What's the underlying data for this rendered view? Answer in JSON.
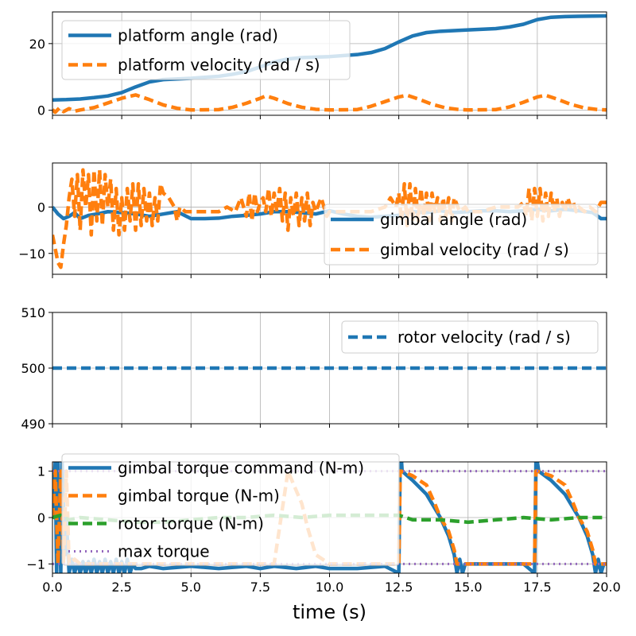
{
  "colors": {
    "blue": "#1f77b4",
    "orange": "#ff7f0e",
    "green": "#2ca02c",
    "purple": "#9467bd",
    "grid": "#b0b0b0"
  },
  "chart_data": [
    {
      "type": "line",
      "xlim": [
        0,
        20
      ],
      "ylim": [
        -1.5,
        29.5
      ],
      "xticks": [
        0,
        2.5,
        5,
        7.5,
        10,
        12.5,
        15,
        17.5,
        20
      ],
      "yticks": [
        0,
        20
      ],
      "ytick_labels": [
        "0",
        "20"
      ],
      "grid": true,
      "legend_position": "upper-left",
      "series": [
        {
          "name": "platform angle (rad)",
          "style": "solid",
          "color": "blue",
          "x": [
            0,
            0.5,
            1,
            1.5,
            2,
            2.5,
            3,
            3.5,
            4,
            5,
            6,
            6.5,
            7,
            7.5,
            8,
            8.5,
            9,
            10,
            11,
            11.5,
            12,
            12.5,
            13,
            13.5,
            14,
            15,
            16,
            16.5,
            17,
            17.5,
            18,
            18.5,
            19,
            20
          ],
          "y": [
            3.1,
            3.2,
            3.4,
            3.8,
            4.3,
            5.3,
            7.0,
            8.5,
            9.2,
            9.6,
            10.2,
            10.8,
            11.6,
            13.0,
            14.5,
            15.4,
            15.8,
            16.1,
            16.7,
            17.3,
            18.5,
            20.5,
            22.3,
            23.3,
            23.7,
            24.1,
            24.5,
            25.0,
            25.8,
            27.2,
            27.9,
            28.1,
            28.2,
            28.3
          ]
        },
        {
          "name": "platform velocity (rad / s)",
          "style": "dashed",
          "color": "orange",
          "x": [
            0,
            0.1,
            0.25,
            0.4,
            0.6,
            0.8,
            1.0,
            1.5,
            2.0,
            2.5,
            3.0,
            3.5,
            4.0,
            4.5,
            5.0,
            6.0,
            6.5,
            7.0,
            7.5,
            7.7,
            8.0,
            8.5,
            9.0,
            9.5,
            10.0,
            11.0,
            11.5,
            12.0,
            12.5,
            12.8,
            13.2,
            13.7,
            14.2,
            14.7,
            15.0,
            16.0,
            16.5,
            17.0,
            17.5,
            17.8,
            18.2,
            18.7,
            19.2,
            19.7,
            20.0
          ],
          "y": [
            0.2,
            -0.6,
            0.7,
            -0.4,
            0.5,
            -0.3,
            0.1,
            0.8,
            2.2,
            3.6,
            4.6,
            3.2,
            1.6,
            0.6,
            0.1,
            0.2,
            0.9,
            2.1,
            3.6,
            4.3,
            3.6,
            2.0,
            0.9,
            0.3,
            0.1,
            0.2,
            1.2,
            2.6,
            4.0,
            4.5,
            3.4,
            1.8,
            0.7,
            0.2,
            0.1,
            0.2,
            1.0,
            2.4,
            4.0,
            4.5,
            3.4,
            1.8,
            0.7,
            0.2,
            0.1
          ]
        }
      ]
    },
    {
      "type": "line",
      "xlim": [
        0,
        20
      ],
      "ylim": [
        -14.5,
        9.5
      ],
      "xticks": [
        0,
        2.5,
        5,
        7.5,
        10,
        12.5,
        15,
        17.5,
        20
      ],
      "yticks": [
        0,
        -10
      ],
      "ytick_labels": [
        "0",
        "−10"
      ],
      "grid": true,
      "legend_position": "lower-right",
      "series": [
        {
          "name": "gimbal angle (rad)",
          "style": "solid",
          "color": "blue",
          "x": [
            0,
            0.2,
            0.4,
            0.6,
            0.8,
            1.0,
            1.3,
            1.6,
            2.0,
            2.5,
            3.0,
            3.5,
            4.0,
            4.5,
            5.0,
            5.5,
            6.0,
            6.5,
            7.0,
            7.5,
            8.0,
            8.5,
            9.0,
            9.5,
            10.0,
            10.5,
            11.0,
            11.5,
            12.0,
            12.5,
            13.0,
            13.5,
            14.0,
            14.5,
            15.0,
            15.5,
            16.0,
            16.5,
            17.0,
            17.5,
            18.0,
            18.5,
            19.0,
            19.5,
            19.8,
            20.0
          ],
          "y": [
            0,
            -1.5,
            -2.5,
            -2.0,
            -1.2,
            -2.5,
            -1.8,
            -1.5,
            -1.0,
            -1.2,
            -1.5,
            -2.0,
            -1.5,
            -1.0,
            -2.5,
            -2.5,
            -2.4,
            -2.0,
            -1.8,
            -1.5,
            -1.0,
            -1.0,
            -1.2,
            -1.5,
            -0.8,
            -1.5,
            -2.0,
            -2.2,
            -2.0,
            -1.8,
            -1.0,
            -1.2,
            -0.8,
            -1.2,
            -1.0,
            -0.8,
            -0.8,
            -1.0,
            -0.8,
            -0.5,
            -0.8,
            -0.5,
            -0.8,
            -1.2,
            -2.5,
            -2.5
          ]
        },
        {
          "name": "gimbal velocity (rad / s)",
          "style": "dashed",
          "color": "orange",
          "x": [
            0,
            0.1,
            0.2,
            0.3,
            0.4,
            0.5,
            0.6,
            0.7,
            0.8,
            0.9,
            1.0,
            1.1,
            1.2,
            1.3,
            1.4,
            1.5,
            1.6,
            1.7,
            1.8,
            1.9,
            2.0,
            2.1,
            2.2,
            2.3,
            2.4,
            2.5,
            2.6,
            2.7,
            2.8,
            2.9,
            3.0,
            3.1,
            3.2,
            3.3,
            3.4,
            3.5,
            3.6,
            3.7,
            3.8,
            3.9,
            4.0,
            4.2,
            4.4,
            4.5,
            4.6,
            4.8,
            5.0,
            5.5,
            6.0,
            6.3,
            6.6,
            6.8,
            7.0,
            7.1,
            7.2,
            7.3,
            7.4,
            7.5,
            7.6,
            7.7,
            7.8,
            7.9,
            8.0,
            8.1,
            8.2,
            8.3,
            8.4,
            8.5,
            8.6,
            8.7,
            8.8,
            8.9,
            9.0,
            9.1,
            9.2,
            9.3,
            9.4,
            9.5,
            9.7,
            9.9,
            10.0,
            10.5,
            11.0,
            11.5,
            12.0,
            12.2,
            12.4,
            12.5,
            12.6,
            12.7,
            12.8,
            12.9,
            13.0,
            13.1,
            13.2,
            13.3,
            13.4,
            13.5,
            13.6,
            13.7,
            13.8,
            13.9,
            14.0,
            14.1,
            14.2,
            14.3,
            14.4,
            14.5,
            14.7,
            14.9,
            15.0,
            15.5,
            16.0,
            16.5,
            16.8,
            17.0,
            17.1,
            17.2,
            17.3,
            17.4,
            17.5,
            17.6,
            17.7,
            17.8,
            17.9,
            18.0,
            18.1,
            18.2,
            18.3,
            18.4,
            18.5,
            18.6,
            18.7,
            18.8,
            18.9,
            19.0,
            19.2,
            19.4,
            19.6,
            19.8,
            20.0
          ],
          "y": [
            -6,
            -9,
            -12,
            -13,
            -8,
            -4,
            2,
            6,
            -2,
            7,
            -5,
            8,
            0,
            7,
            -6,
            8,
            -3,
            8,
            -4,
            7,
            0,
            6,
            -5,
            4,
            -6,
            2,
            -5,
            4,
            -3,
            5,
            -5,
            5,
            -4,
            4,
            -3,
            3,
            -4,
            2,
            -3,
            5,
            3,
            2,
            0,
            -3,
            0,
            -1,
            -1,
            -1,
            -1,
            0,
            -1,
            2,
            -2,
            3,
            -3,
            3,
            -1,
            1,
            2,
            -1,
            4,
            -2,
            3,
            -1,
            4,
            -3,
            3,
            -5,
            2,
            -2,
            3,
            -4,
            2,
            -3,
            3,
            -4,
            1,
            -1,
            2,
            -2,
            -1,
            -1,
            -1,
            -1,
            0,
            2,
            0,
            3,
            -3,
            5,
            -4,
            5,
            -3,
            4,
            -3,
            4,
            -2,
            3,
            -3,
            3,
            -1,
            2,
            -3,
            2,
            -2,
            2,
            -3,
            2,
            -1,
            0,
            -1,
            -1,
            0,
            0,
            0,
            1,
            -2,
            4,
            -3,
            4,
            -2,
            4,
            -3,
            3,
            -2,
            3,
            -1,
            2,
            -2,
            1,
            -1,
            2,
            0,
            1,
            -1,
            0,
            -1,
            0,
            -1,
            1,
            1
          ]
        }
      ]
    },
    {
      "type": "line",
      "xlim": [
        0,
        20
      ],
      "ylim": [
        490,
        510
      ],
      "xticks": [
        0,
        2.5,
        5,
        7.5,
        10,
        12.5,
        15,
        17.5,
        20
      ],
      "yticks": [
        510,
        500,
        490
      ],
      "ytick_labels": [
        "510",
        "500",
        "490"
      ],
      "grid": true,
      "legend_position": "upper-right",
      "series": [
        {
          "name": "rotor velocity (rad / s)",
          "style": "dashed",
          "color": "blue",
          "x": [
            0,
            20
          ],
          "y": [
            500,
            500
          ]
        }
      ]
    },
    {
      "type": "line",
      "xlim": [
        0,
        20
      ],
      "ylim": [
        -1.2,
        1.2
      ],
      "xticks": [
        0,
        2.5,
        5,
        7.5,
        10,
        12.5,
        15,
        17.5,
        20
      ],
      "xtick_labels": [
        "0.0",
        "2.5",
        "5.0",
        "7.5",
        "10.0",
        "12.5",
        "15.0",
        "17.5",
        "20.0"
      ],
      "yticks": [
        1,
        0,
        -1
      ],
      "ytick_labels": [
        "1",
        "0",
        "−1"
      ],
      "xlabel": "time (s)",
      "grid": true,
      "legend_position": "upper-left",
      "series": [
        {
          "name": "gimbal torque command (N-m)",
          "style": "solid",
          "color": "blue",
          "x": [
            0,
            0.1,
            0.15,
            0.2,
            0.3,
            0.35,
            0.45,
            0.5,
            0.6,
            0.7,
            0.8,
            0.9,
            1.0,
            1.1,
            1.2,
            1.3,
            1.4,
            1.5,
            1.6,
            1.7,
            1.8,
            1.9,
            2.0,
            2.1,
            2.2,
            2.3,
            2.4,
            2.5,
            2.6,
            2.7,
            2.8,
            2.9,
            3.0,
            3.2,
            3.5,
            4.0,
            5.0,
            6.0,
            7.0,
            7.5,
            8.0,
            8.8,
            9.5,
            10.0,
            11.0,
            12.0,
            12.5,
            12.55,
            12.6,
            12.62,
            13.0,
            13.5,
            13.8,
            14.0,
            14.3,
            14.5,
            14.6,
            14.7,
            14.8,
            14.9,
            15.0,
            16.0,
            17.0,
            17.4,
            17.45,
            17.5,
            17.55,
            18.0,
            18.5,
            18.8,
            19.0,
            19.3,
            19.5,
            19.6,
            19.7,
            19.8,
            19.9,
            20.0
          ],
          "y": [
            0,
            1.2,
            -1.2,
            1.2,
            -1.2,
            1.2,
            -0.8,
            0,
            -1.2,
            -0.9,
            -1.2,
            -0.95,
            -1.2,
            -0.95,
            -1.2,
            -0.95,
            -1.2,
            -0.9,
            -1.2,
            -0.95,
            -1.2,
            -0.9,
            -1.2,
            -0.95,
            -1.2,
            -0.9,
            -1.2,
            -0.95,
            -1.2,
            -0.9,
            -1.2,
            -1.0,
            -1.1,
            -1.1,
            -1.05,
            -1.1,
            -1.05,
            -1.1,
            -1.05,
            -1.1,
            -1.05,
            -1.1,
            -1.05,
            -1.1,
            -1.1,
            -1.05,
            -1.2,
            1.2,
            1.2,
            1.0,
            0.8,
            0.5,
            0.2,
            0,
            -0.4,
            -0.8,
            -1.2,
            -0.9,
            -1.2,
            -1.0,
            -1.0,
            -1.0,
            -1.0,
            -1.2,
            1.2,
            1.2,
            1.0,
            0.8,
            0.5,
            0.2,
            0,
            -0.4,
            -0.8,
            -1.2,
            -0.9,
            -1.2,
            -1.0,
            -1.0
          ]
        },
        {
          "name": "gimbal torque (N-m)",
          "style": "dashed",
          "color": "orange",
          "x": [
            0,
            0.1,
            0.2,
            0.3,
            0.4,
            0.5,
            0.6,
            0.8,
            1.0,
            1.5,
            2.0,
            2.5,
            3.0,
            3.5,
            4.0,
            5.0,
            6.0,
            7.0,
            7.5,
            8.0,
            8.5,
            9.0,
            9.2,
            9.5,
            10.0,
            11.0,
            12.0,
            12.5,
            12.55,
            12.6,
            13.0,
            13.5,
            13.8,
            14.0,
            14.3,
            14.5,
            14.6,
            14.7,
            15.0,
            16.0,
            17.0,
            17.4,
            17.45,
            17.5,
            18.0,
            18.5,
            18.8,
            19.0,
            19.3,
            19.5,
            19.6,
            19.7,
            20.0
          ],
          "y": [
            0,
            1.0,
            -1.0,
            1.0,
            -1.0,
            1.0,
            -1.0,
            -0.9,
            -1.0,
            -1.0,
            -1.0,
            -1.0,
            -1.0,
            -1.0,
            -1.0,
            -1.0,
            -1.0,
            -1.0,
            -1.0,
            -1.0,
            1.0,
            0.3,
            -0.2,
            -0.8,
            -1.0,
            -1.0,
            -1.0,
            -1.0,
            1.0,
            1.0,
            0.9,
            0.7,
            0.3,
            0.0,
            -0.3,
            -0.7,
            -1.0,
            -1.0,
            -1.0,
            -1.0,
            -1.0,
            -1.0,
            1.0,
            1.0,
            0.9,
            0.7,
            0.3,
            0.0,
            -0.3,
            -0.7,
            -1.0,
            -1.0,
            -1.0
          ]
        },
        {
          "name": "rotor torque (N-m)",
          "style": "dashed",
          "color": "green",
          "x": [
            0,
            0.3,
            0.6,
            1.0,
            2.0,
            3.0,
            4.0,
            5.0,
            6.0,
            7.0,
            8.0,
            9.0,
            10.0,
            11.0,
            12.0,
            12.5,
            13.0,
            14.0,
            15.0,
            16.0,
            17.0,
            18.0,
            19.0,
            20.0
          ],
          "y": [
            0,
            0.05,
            -0.05,
            0.0,
            -0.05,
            -0.1,
            -0.1,
            -0.05,
            0.0,
            0.0,
            0.05,
            0.0,
            0.05,
            0.05,
            0.05,
            0.05,
            -0.05,
            -0.05,
            -0.1,
            -0.05,
            0.0,
            -0.05,
            0.0,
            0.0
          ]
        },
        {
          "name": "max torque",
          "style": "dotted",
          "color": "purple",
          "x": [
            0,
            20
          ],
          "y": [
            1,
            1
          ],
          "mirror": true
        }
      ]
    }
  ]
}
